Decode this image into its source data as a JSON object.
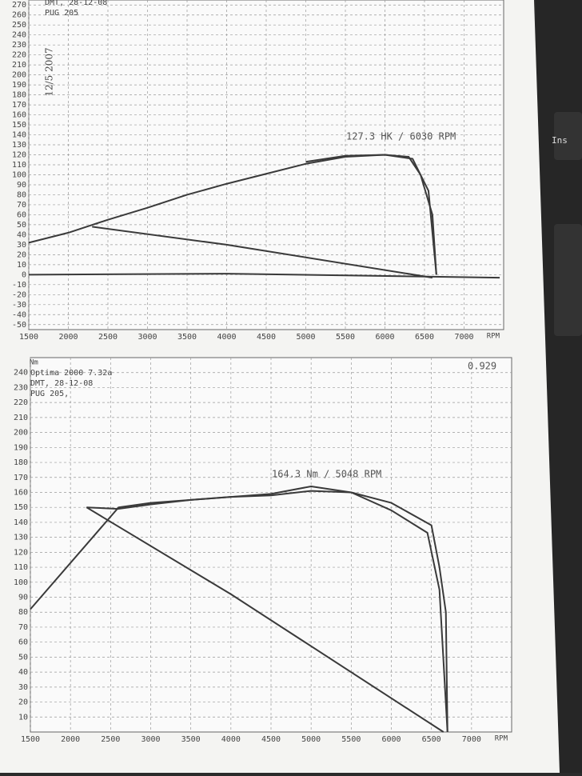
{
  "keyboard_key": "Ins",
  "chart_data": [
    {
      "type": "line",
      "header_lines": [
        "DMT, 28-12-08",
        "PUG 205"
      ],
      "handwritten_note": "12/5 2007",
      "annotation": "127.3 HK / 6030 RPM",
      "x_label": "RPM",
      "color": "#3a3a3a",
      "grid": true,
      "xlim": [
        1500,
        7500
      ],
      "ylim": [
        -55,
        275
      ],
      "xticks": [
        1500,
        2000,
        2500,
        3000,
        3500,
        4000,
        4500,
        5000,
        5500,
        6000,
        6500,
        7000
      ],
      "yticks": [
        -50,
        -40,
        -30,
        -20,
        -10,
        0,
        10,
        20,
        30,
        40,
        50,
        60,
        70,
        80,
        90,
        100,
        110,
        120,
        130,
        140,
        150,
        160,
        170,
        180,
        190,
        200,
        210,
        220,
        230,
        240,
        250,
        260,
        270
      ],
      "series": [
        {
          "x": [
            1500,
            2000,
            2500,
            3000,
            3500,
            4000,
            4500,
            5000,
            5500,
            6000,
            6300,
            6450,
            6600,
            6650
          ],
          "values": [
            32,
            42,
            55,
            67,
            80,
            91,
            101,
            111,
            118,
            120,
            118,
            100,
            60,
            0
          ]
        },
        {
          "x": [
            5000,
            5500,
            6000,
            6350,
            6550,
            6650
          ],
          "values": [
            113,
            119,
            120,
            116,
            84,
            0
          ]
        },
        {
          "x": [
            2300,
            4000,
            6600
          ],
          "values": [
            48,
            30,
            -3
          ]
        },
        {
          "x": [
            1500,
            4000,
            7450
          ],
          "values": [
            0,
            1,
            -3
          ]
        }
      ]
    },
    {
      "type": "line",
      "header_lines": [
        "Optima 2000 7.32a",
        "DMT, 28-12-08",
        "PUG 205,"
      ],
      "corner_value": "0.929",
      "annotation": "164.3 Nm / 5048 RPM",
      "x_label": "RPM",
      "y_label": "Nm",
      "color": "#3a3a3a",
      "grid": true,
      "xlim": [
        1500,
        7500
      ],
      "ylim": [
        0,
        250
      ],
      "xticks": [
        1500,
        2000,
        2500,
        3000,
        3500,
        4000,
        4500,
        5000,
        5500,
        6000,
        6500,
        7000
      ],
      "yticks": [
        10,
        20,
        30,
        40,
        50,
        60,
        70,
        80,
        90,
        100,
        110,
        120,
        130,
        140,
        150,
        160,
        170,
        180,
        190,
        200,
        210,
        220,
        230,
        240
      ],
      "series": [
        {
          "x": [
            1500,
            2600,
            3000,
            3500,
            4000,
            4500,
            5000,
            5500,
            6000,
            6500,
            6600,
            6680,
            6700
          ],
          "values": [
            82,
            150,
            153,
            155,
            157,
            159,
            164,
            160,
            153,
            138,
            110,
            80,
            0
          ]
        },
        {
          "x": [
            2200,
            2600,
            3000,
            3500,
            4000,
            4500,
            5000,
            5500,
            6000,
            6450,
            6600,
            6700
          ],
          "values": [
            150,
            149,
            152,
            155,
            157,
            158,
            161,
            160,
            148,
            133,
            95,
            0
          ]
        },
        {
          "x": [
            2200,
            4000,
            6650
          ],
          "values": [
            150,
            92,
            0
          ]
        }
      ]
    }
  ]
}
